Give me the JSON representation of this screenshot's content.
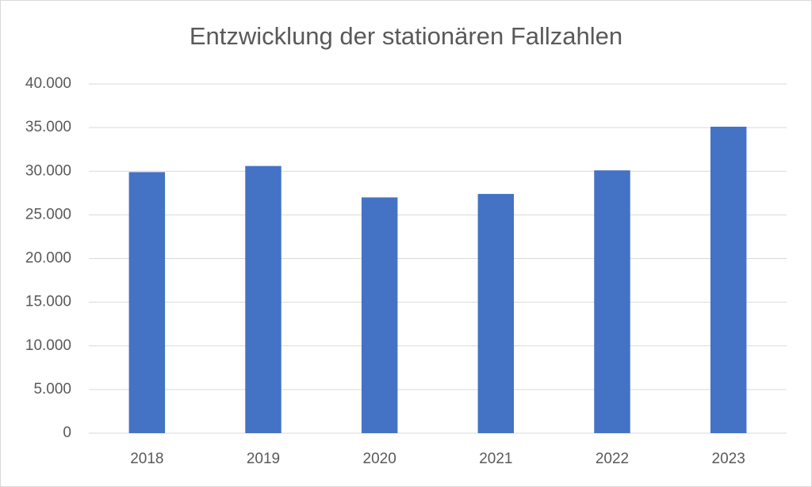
{
  "chart_data": {
    "type": "bar",
    "title": "Entzwicklung der stationären Fallzahlen",
    "categories": [
      "2018",
      "2019",
      "2020",
      "2021",
      "2022",
      "2023"
    ],
    "values": [
      29900,
      30600,
      27000,
      27400,
      30100,
      35100
    ],
    "color": "#4472c4",
    "ylim": [
      0,
      40000
    ],
    "yticks": [
      0,
      {
        "value": 5000,
        "label": "5.000"
      },
      {
        "value": 10000,
        "label": "10.000"
      },
      {
        "value": 15000,
        "label": "15.000"
      },
      {
        "value": 20000,
        "label": "20.000"
      },
      {
        "value": 25000,
        "label": "25.000"
      },
      {
        "value": 30000,
        "label": "30.000"
      },
      {
        "value": 35000,
        "label": "35.000"
      },
      {
        "value": 40000,
        "label": "40.000"
      }
    ],
    "grid": true
  }
}
